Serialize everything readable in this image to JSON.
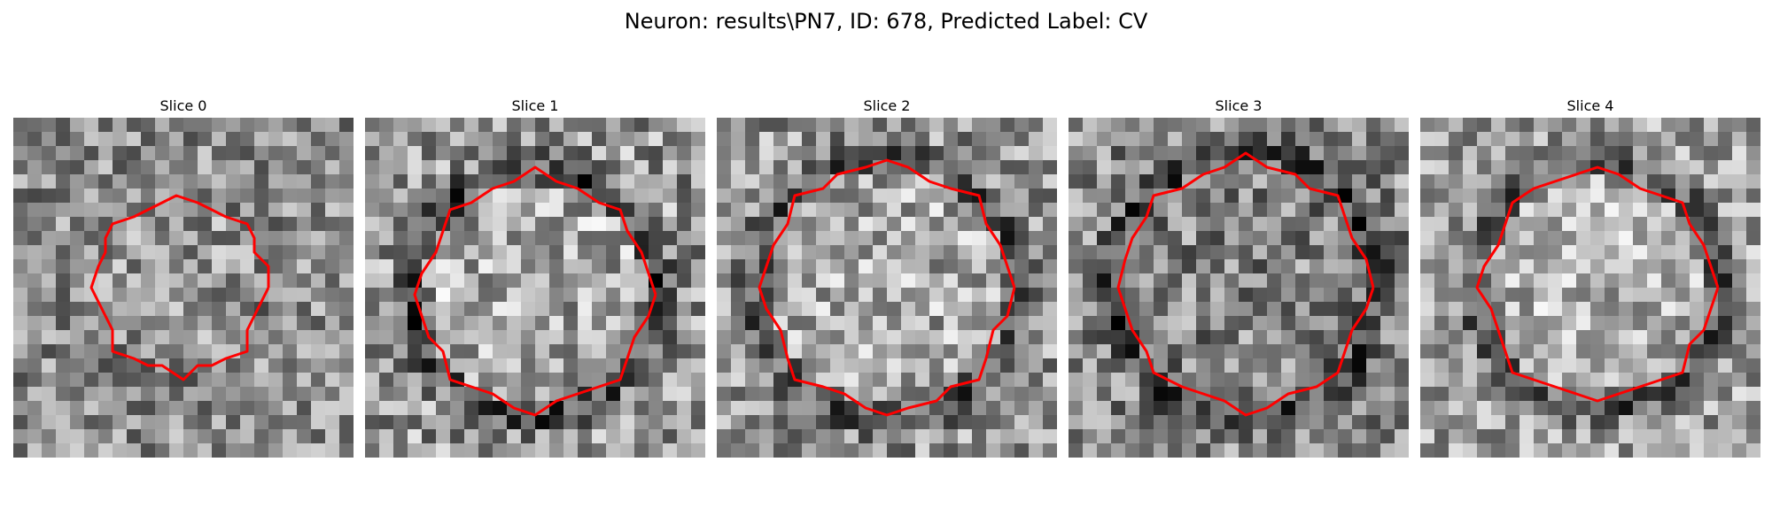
{
  "figure": {
    "title": "Neuron: results\\PN7, ID: 678, Predicted Label: CV",
    "contour_color": "#ff0000",
    "colormap": "gray"
  },
  "panels": [
    {
      "title": "Slice 0"
    },
    {
      "title": "Slice 1"
    },
    {
      "title": "Slice 2"
    },
    {
      "title": "Slice 3"
    },
    {
      "title": "Slice 4"
    }
  ]
}
